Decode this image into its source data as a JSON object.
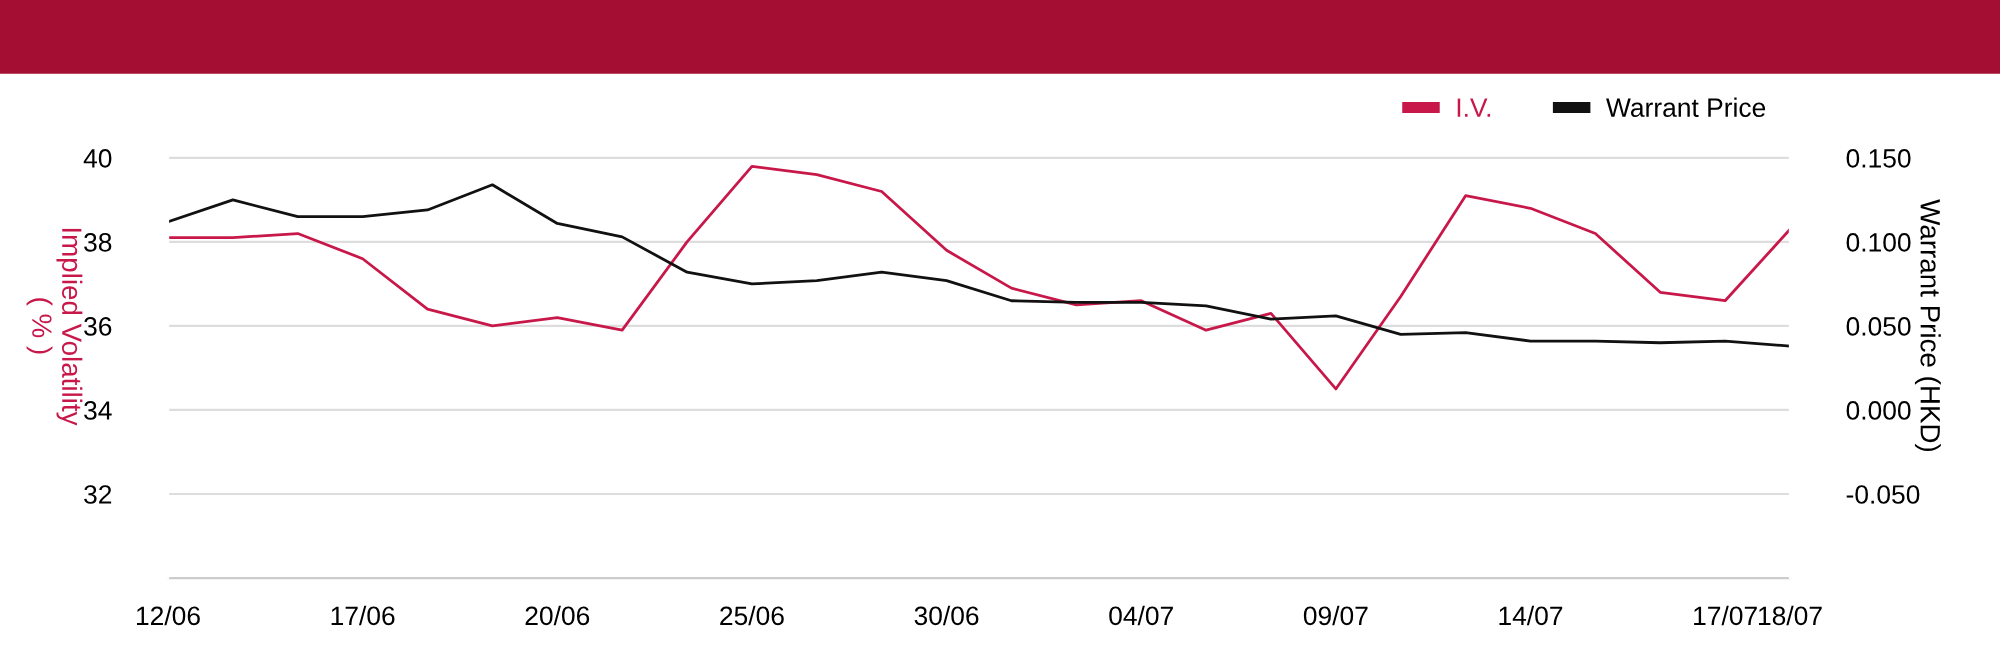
{
  "chart_data": {
    "type": "line",
    "categories": [
      "12/06",
      null,
      null,
      "17/06",
      null,
      null,
      "20/06",
      null,
      null,
      "25/06",
      null,
      null,
      "30/06",
      null,
      null,
      "04/07",
      null,
      null,
      "09/07",
      null,
      null,
      "14/07",
      null,
      null,
      "17/07",
      "18/07"
    ],
    "series": [
      {
        "name": "I.V.",
        "color": "#c8184a",
        "values": [
          38.1,
          38.1,
          38.2,
          37.6,
          36.4,
          36.0,
          36.2,
          35.9,
          38.0,
          39.8,
          39.6,
          39.2,
          37.8,
          36.9,
          36.5,
          36.6,
          35.9,
          36.3,
          34.5,
          36.7,
          39.1,
          38.8,
          38.2,
          36.8,
          36.6,
          38.3
        ]
      },
      {
        "name": "Warrant Price",
        "color": "#111111",
        "axis": "y2",
        "values": [
          0.112,
          0.125,
          0.115,
          0.115,
          0.119,
          0.134,
          0.111,
          0.103,
          0.082,
          0.075,
          0.077,
          0.082,
          0.077,
          0.065,
          0.064,
          0.064,
          0.062,
          0.054,
          0.056,
          0.045,
          0.046,
          0.041,
          0.041,
          0.04,
          0.041,
          0.038
        ]
      }
    ],
    "ylabel": "Implied Volatility\n( % )",
    "y2label": "Warrant Price (HKD)",
    "ylim": [
      30,
      42
    ],
    "yticks": [
      32,
      34,
      36,
      38,
      40
    ],
    "y2lim": [
      -0.1,
      0.2
    ],
    "y2ticks": [
      {
        "value": -0.05,
        "label": "-0.050"
      },
      {
        "value": 0,
        "label": "0.000"
      },
      {
        "value": 0.05,
        "label": "0.050"
      },
      {
        "value": 0.1,
        "label": "0.100"
      },
      {
        "value": 0.15,
        "label": "0.150"
      }
    ],
    "grid": "y",
    "legend": "top right",
    "marker": "none",
    "line_style": "solid"
  }
}
